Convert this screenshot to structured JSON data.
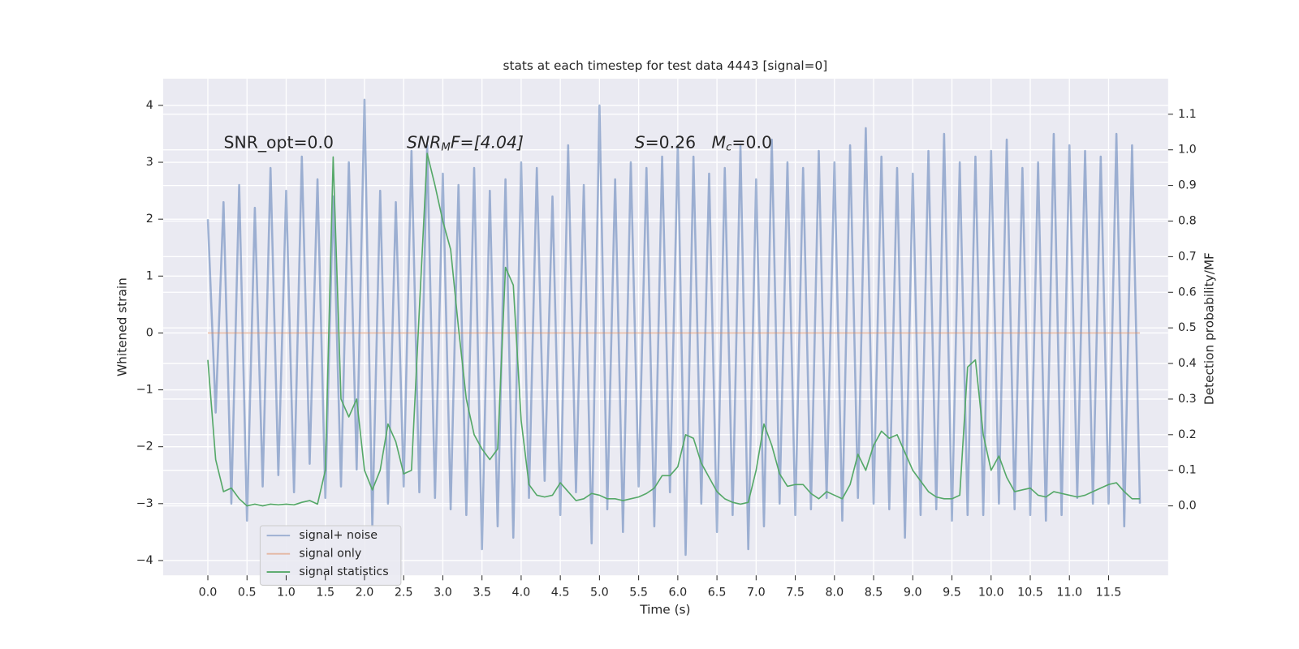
{
  "chart_data": {
    "type": "line",
    "title": "stats at each timestep for test data 4443 [signal=0]",
    "xlabel": "Time (s)",
    "ylabel": "Whitened strain",
    "y2label": "Detection probability/MF",
    "annotations": [
      [
        "SNR_opt=0.0"
      ],
      [
        "SNR",
        "M",
        "F=[4.04]"
      ],
      [
        "S",
        "=0.26   ",
        "M",
        "c",
        "=0.0"
      ]
    ],
    "x": [
      0,
      0.1,
      0.2,
      0.3,
      0.4,
      0.5,
      0.6,
      0.7,
      0.8,
      0.9,
      1,
      1.1,
      1.2,
      1.3,
      1.4,
      1.5,
      1.6,
      1.7,
      1.8,
      1.9,
      2,
      2.1,
      2.2,
      2.3,
      2.4,
      2.5,
      2.6,
      2.7,
      2.8,
      2.9,
      3,
      3.1,
      3.2,
      3.3,
      3.4,
      3.5,
      3.6,
      3.7,
      3.8,
      3.9,
      4,
      4.1,
      4.2,
      4.3,
      4.4,
      4.5,
      4.6,
      4.7,
      4.8,
      4.9,
      5,
      5.1,
      5.2,
      5.3,
      5.4,
      5.5,
      5.6,
      5.7,
      5.8,
      5.9,
      6,
      6.1,
      6.2,
      6.3,
      6.4,
      6.5,
      6.6,
      6.7,
      6.8,
      6.9,
      7,
      7.1,
      7.2,
      7.3,
      7.4,
      7.5,
      7.6,
      7.7,
      7.8,
      7.9,
      8,
      8.1,
      8.2,
      8.3,
      8.4,
      8.5,
      8.6,
      8.7,
      8.8,
      8.9,
      9,
      9.1,
      9.2,
      9.3,
      9.4,
      9.5,
      9.6,
      9.7,
      9.8,
      9.9,
      10,
      10.1,
      10.2,
      10.3,
      10.4,
      10.5,
      10.6,
      10.7,
      10.8,
      10.9,
      11,
      11.1,
      11.2,
      11.3,
      11.4,
      11.5,
      11.6,
      11.7,
      11.8,
      11.9
    ],
    "series": [
      {
        "name": "signal+ noise",
        "color": "#4c72b0",
        "values": [
          2.0,
          -1.4,
          2.3,
          -3.0,
          2.6,
          -3.3,
          2.2,
          -2.7,
          2.9,
          -2.5,
          2.5,
          -2.8,
          3.1,
          -2.3,
          2.7,
          -2.9,
          2.4,
          -2.7,
          3.0,
          -2.4,
          4.1,
          -3.4,
          2.5,
          -3.0,
          2.3,
          -2.7,
          3.2,
          -2.8,
          3.3,
          -2.9,
          2.8,
          -3.1,
          2.6,
          -3.2,
          2.9,
          -3.8,
          2.5,
          -3.4,
          2.7,
          -3.6,
          3.0,
          -2.9,
          2.9,
          -2.6,
          2.4,
          -3.2,
          3.3,
          -2.8,
          2.6,
          -3.7,
          4.0,
          -3.1,
          2.7,
          -3.5,
          3.0,
          -2.7,
          2.9,
          -3.4,
          3.1,
          -2.8,
          3.3,
          -3.9,
          3.1,
          -3.0,
          2.8,
          -3.5,
          2.9,
          -3.2,
          3.3,
          -3.8,
          2.7,
          -3.4,
          3.4,
          -3.0,
          3.0,
          -3.2,
          2.9,
          -3.1,
          3.2,
          -2.9,
          3.0,
          -3.3,
          3.3,
          -2.9,
          3.6,
          -3.0,
          3.1,
          -3.1,
          2.9,
          -3.6,
          2.8,
          -3.2,
          3.2,
          -3.1,
          3.5,
          -3.3,
          3.0,
          -3.2,
          3.1,
          -3.2,
          3.2,
          -3.0,
          3.4,
          -3.1,
          2.9,
          -3.2,
          3.0,
          -3.3,
          3.5,
          -3.2,
          3.3,
          -2.9,
          3.2,
          -3.0,
          3.1,
          -3.0,
          3.5,
          -3.4,
          3.3,
          -3.0
        ]
      },
      {
        "name": "signal only",
        "color": "#dd8452",
        "x": [
          0,
          11.9
        ],
        "values": [
          0,
          0
        ]
      },
      {
        "name": "signal statistics",
        "color": "#55a868",
        "axis": "y2",
        "values": [
          0.41,
          0.13,
          0.04,
          0.05,
          0.02,
          0.0,
          0.005,
          0.0,
          0.005,
          0.003,
          0.005,
          0.003,
          0.01,
          0.015,
          0.005,
          0.1,
          0.98,
          0.3,
          0.25,
          0.3,
          0.1,
          0.045,
          0.1,
          0.23,
          0.18,
          0.09,
          0.1,
          0.55,
          0.99,
          0.9,
          0.8,
          0.72,
          0.5,
          0.3,
          0.2,
          0.16,
          0.13,
          0.16,
          0.67,
          0.62,
          0.24,
          0.06,
          0.03,
          0.025,
          0.03,
          0.065,
          0.04,
          0.015,
          0.02,
          0.035,
          0.03,
          0.02,
          0.02,
          0.015,
          0.02,
          0.025,
          0.035,
          0.05,
          0.085,
          0.085,
          0.11,
          0.2,
          0.19,
          0.12,
          0.08,
          0.04,
          0.02,
          0.01,
          0.005,
          0.01,
          0.1,
          0.23,
          0.17,
          0.09,
          0.055,
          0.06,
          0.06,
          0.035,
          0.02,
          0.04,
          0.03,
          0.02,
          0.06,
          0.145,
          0.1,
          0.17,
          0.21,
          0.19,
          0.2,
          0.15,
          0.1,
          0.07,
          0.04,
          0.025,
          0.02,
          0.02,
          0.03,
          0.39,
          0.41,
          0.2,
          0.1,
          0.14,
          0.08,
          0.04,
          0.045,
          0.05,
          0.03,
          0.025,
          0.04,
          0.035,
          0.03,
          0.025,
          0.03,
          0.04,
          0.05,
          0.06,
          0.065,
          0.04,
          0.02,
          0.02
        ]
      }
    ],
    "xlim": [
      -0.57,
      12.26
    ],
    "ylim": [
      -4.26,
      4.47
    ],
    "y2lim": [
      -0.195,
      1.2
    ],
    "xticks": [
      {
        "value": 0,
        "label": "0.0"
      },
      {
        "value": 0.5,
        "label": "0.5"
      },
      {
        "value": 1,
        "label": "1.0"
      },
      {
        "value": 1.5,
        "label": "1.5"
      },
      {
        "value": 2,
        "label": "2.0"
      },
      {
        "value": 2.5,
        "label": "2.5"
      },
      {
        "value": 3,
        "label": "3.0"
      },
      {
        "value": 3.5,
        "label": "3.5"
      },
      {
        "value": 4,
        "label": "4.0"
      },
      {
        "value": 4.5,
        "label": "4.5"
      },
      {
        "value": 5,
        "label": "5.0"
      },
      {
        "value": 5.5,
        "label": "5.5"
      },
      {
        "value": 6,
        "label": "6.0"
      },
      {
        "value": 6.5,
        "label": "6.5"
      },
      {
        "value": 7,
        "label": "7.0"
      },
      {
        "value": 7.5,
        "label": "7.5"
      },
      {
        "value": 8,
        "label": "8.0"
      },
      {
        "value": 8.5,
        "label": "8.5"
      },
      {
        "value": 9,
        "label": "9.0"
      },
      {
        "value": 9.5,
        "label": "9.5"
      },
      {
        "value": 10,
        "label": "10.0"
      },
      {
        "value": 10.5,
        "label": "10.5"
      },
      {
        "value": 11,
        "label": "11.0"
      },
      {
        "value": 11.5,
        "label": "11.5"
      }
    ],
    "yticks": [
      {
        "value": -4,
        "label": "−4"
      },
      {
        "value": -3,
        "label": "−3"
      },
      {
        "value": -2,
        "label": "−2"
      },
      {
        "value": -1,
        "label": "−1"
      },
      0,
      1,
      2,
      3,
      4
    ],
    "y2ticks": [
      {
        "value": 0,
        "label": "0.0"
      },
      {
        "value": 0.1,
        "label": "0.1"
      },
      {
        "value": 0.2,
        "label": "0.2"
      },
      {
        "value": 0.3,
        "label": "0.3"
      },
      {
        "value": 0.4,
        "label": "0.4"
      },
      {
        "value": 0.5,
        "label": "0.5"
      },
      {
        "value": 0.6,
        "label": "0.6"
      },
      {
        "value": 0.7,
        "label": "0.7"
      },
      {
        "value": 0.8,
        "label": "0.8"
      },
      {
        "value": 0.9,
        "label": "0.9"
      },
      {
        "value": 1,
        "label": "1.0"
      },
      {
        "value": 1.1,
        "label": "1.1"
      }
    ],
    "grid": true,
    "legend": "lower left"
  }
}
